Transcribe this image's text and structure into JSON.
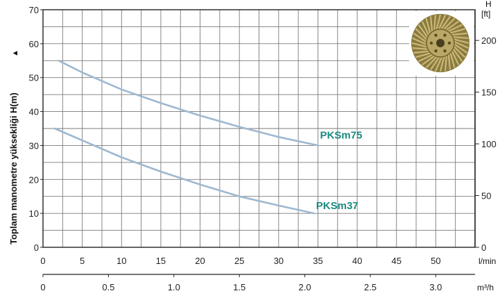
{
  "chart_data": {
    "type": "line",
    "xlabel": "l/min",
    "ylabel": "Toplam manometre yüksekliği  H(m)",
    "y_arrow": "▲",
    "xlim": [
      0,
      55
    ],
    "ylim": [
      0,
      70
    ],
    "x_ticks": [
      0,
      5,
      10,
      15,
      20,
      25,
      30,
      35,
      40,
      45,
      50
    ],
    "y_ticks": [
      0,
      10,
      20,
      30,
      40,
      50,
      60,
      70
    ],
    "secondary_x": {
      "label": "m³/h",
      "ticks": [
        0,
        0.5,
        1.0,
        1.5,
        2.0,
        2.5,
        3.0
      ],
      "tick_labels": [
        "0",
        "0.5",
        "1.0",
        "1.5",
        "2.0",
        "2.5",
        "3.0"
      ]
    },
    "secondary_y": {
      "label_top": "H",
      "label_unit": "[ft]",
      "ticks": [
        0,
        50,
        100,
        150,
        200
      ]
    },
    "grid": true,
    "series": [
      {
        "name": "PKSm75",
        "color": "#9db8d0",
        "x": [
          2,
          5,
          10,
          15,
          20,
          25,
          30,
          35
        ],
        "y": [
          55,
          51.5,
          46.5,
          42.5,
          38.8,
          35.5,
          32.5,
          30
        ]
      },
      {
        "name": "PKSm37",
        "color": "#9db8d0",
        "x": [
          1.5,
          5,
          10,
          15,
          20,
          25,
          30,
          34.5
        ],
        "y": [
          35,
          31.5,
          26.5,
          22.3,
          18.5,
          15,
          12.3,
          10
        ]
      }
    ],
    "label_color": "#1a8a80"
  },
  "image": {
    "name": "impeller-photo"
  }
}
